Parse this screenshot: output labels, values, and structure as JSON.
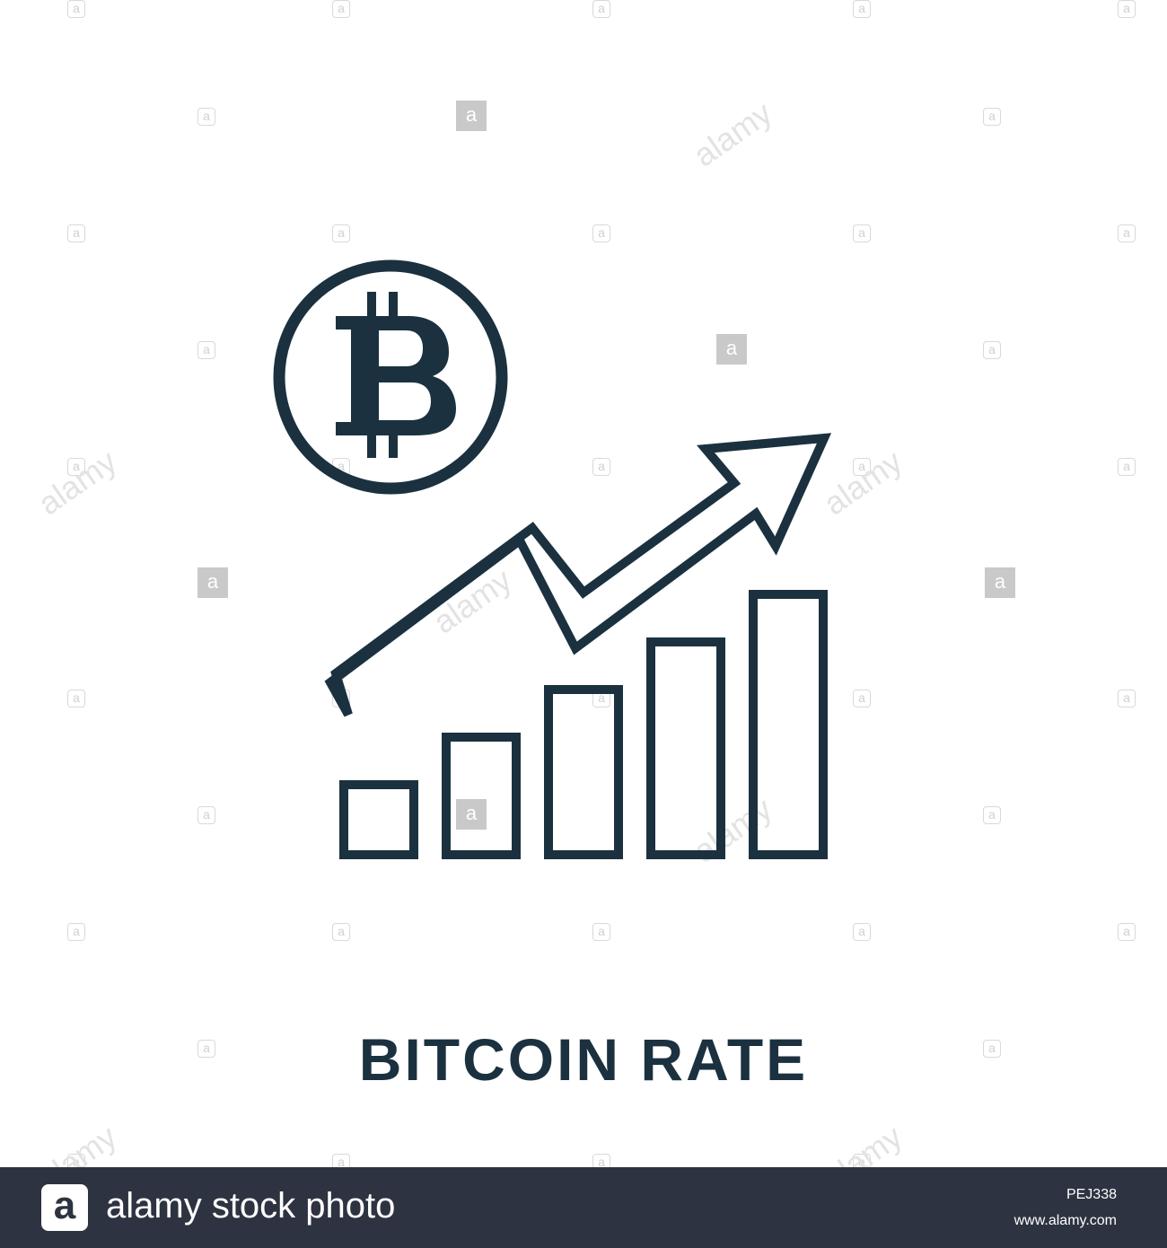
{
  "title": "BITCOIN RATE",
  "icon_name": "bitcoin-rate-growth-icon",
  "bar_levels": [
    1,
    2,
    3,
    4,
    5
  ],
  "colors": {
    "stroke": "#1b313f",
    "background": "#ffffff",
    "footer_bg": "#2d3340",
    "watermark": "#d9d9d9"
  },
  "watermark": {
    "letter": "a",
    "word": "alamy"
  },
  "footer": {
    "logo_letter": "a",
    "brand_text": "alamy stock photo",
    "image_id": "PEJ338",
    "url": "www.alamy.com"
  }
}
